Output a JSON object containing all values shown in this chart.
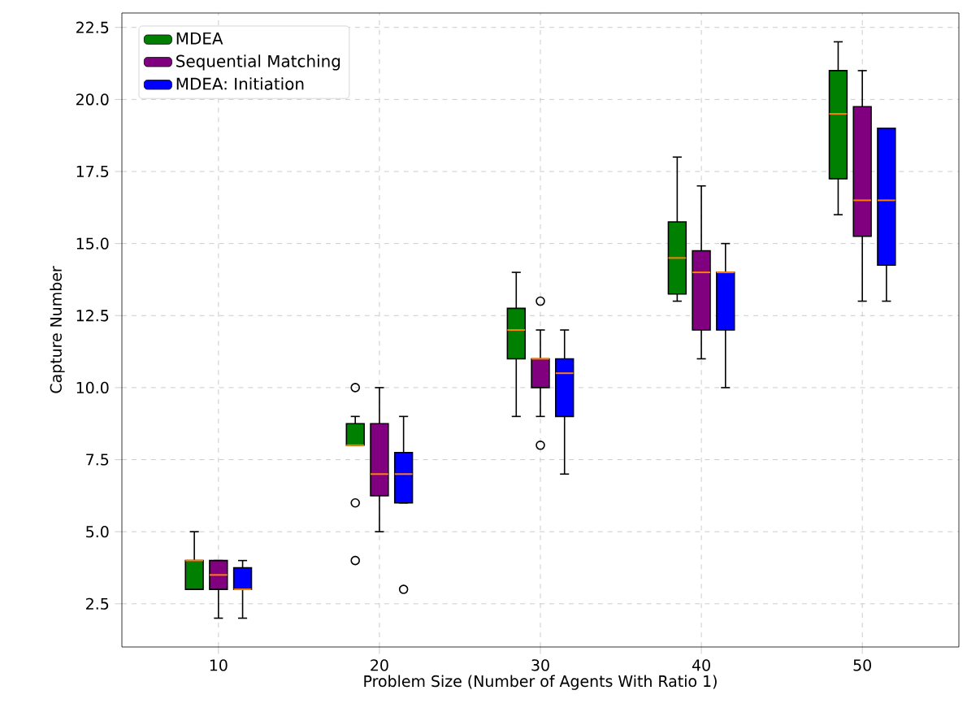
{
  "chart_data": {
    "type": "box",
    "xlabel": "Problem Size (Number of Agents With Ratio 1)",
    "ylabel": "Capture Number",
    "categories": [
      "10",
      "20",
      "30",
      "40",
      "50"
    ],
    "ylim": [
      1,
      23
    ],
    "yticks": [
      2.5,
      {
        "value": 5,
        "label": "5.0"
      },
      7.5,
      {
        "value": 10,
        "label": "10.0"
      },
      12.5,
      {
        "value": 15,
        "label": "15.0"
      },
      17.5,
      {
        "value": 20,
        "label": "20.0"
      },
      22.5
    ],
    "grid": true,
    "legend": "top left",
    "series": [
      {
        "name": "MDEA",
        "color": "#008000",
        "boxes": [
          {
            "low": 3,
            "q1": 3,
            "median": 4,
            "q3": 4,
            "high": 5
          },
          {
            "low": 8,
            "q1": 8,
            "median": 8,
            "q3": 8.75,
            "high": 9,
            "outliers": [
              10,
              6,
              4
            ]
          },
          {
            "low": 9,
            "q1": 11,
            "median": 12,
            "q3": 12.75,
            "high": 14
          },
          {
            "low": 13,
            "q1": 13.25,
            "median": 14.5,
            "q3": 15.75,
            "high": 18
          },
          {
            "low": 16,
            "q1": 17.25,
            "median": 19.5,
            "q3": 21,
            "high": 22
          }
        ]
      },
      {
        "name": "Sequential Matching",
        "color": "#800080",
        "boxes": [
          {
            "low": 2,
            "q1": 3,
            "median": 3.5,
            "q3": 4,
            "high": 4
          },
          {
            "low": 5,
            "q1": 6.25,
            "median": 7,
            "q3": 8.75,
            "high": 10
          },
          {
            "low": 9,
            "q1": 10,
            "median": 11,
            "q3": 11,
            "high": 12,
            "outliers": [
              13,
              8
            ]
          },
          {
            "low": 11,
            "q1": 12,
            "median": 14,
            "q3": 14.75,
            "high": 17
          },
          {
            "low": 13,
            "q1": 15.25,
            "median": 16.5,
            "q3": 19.75,
            "high": 21
          }
        ]
      },
      {
        "name": "MDEA: Initiation",
        "color": "#0000ff",
        "boxes": [
          {
            "low": 2,
            "q1": 3,
            "median": 3,
            "q3": 3.75,
            "high": 4
          },
          {
            "low": 6,
            "q1": 6,
            "median": 7,
            "q3": 7.75,
            "high": 9,
            "outliers": [
              3
            ]
          },
          {
            "low": 7,
            "q1": 9,
            "median": 10.5,
            "q3": 11,
            "high": 12
          },
          {
            "low": 10,
            "q1": 12,
            "median": 14,
            "q3": 14,
            "high": 15
          },
          {
            "low": 13,
            "q1": 14.25,
            "median": 16.5,
            "q3": 19,
            "high": 19
          }
        ]
      }
    ]
  }
}
